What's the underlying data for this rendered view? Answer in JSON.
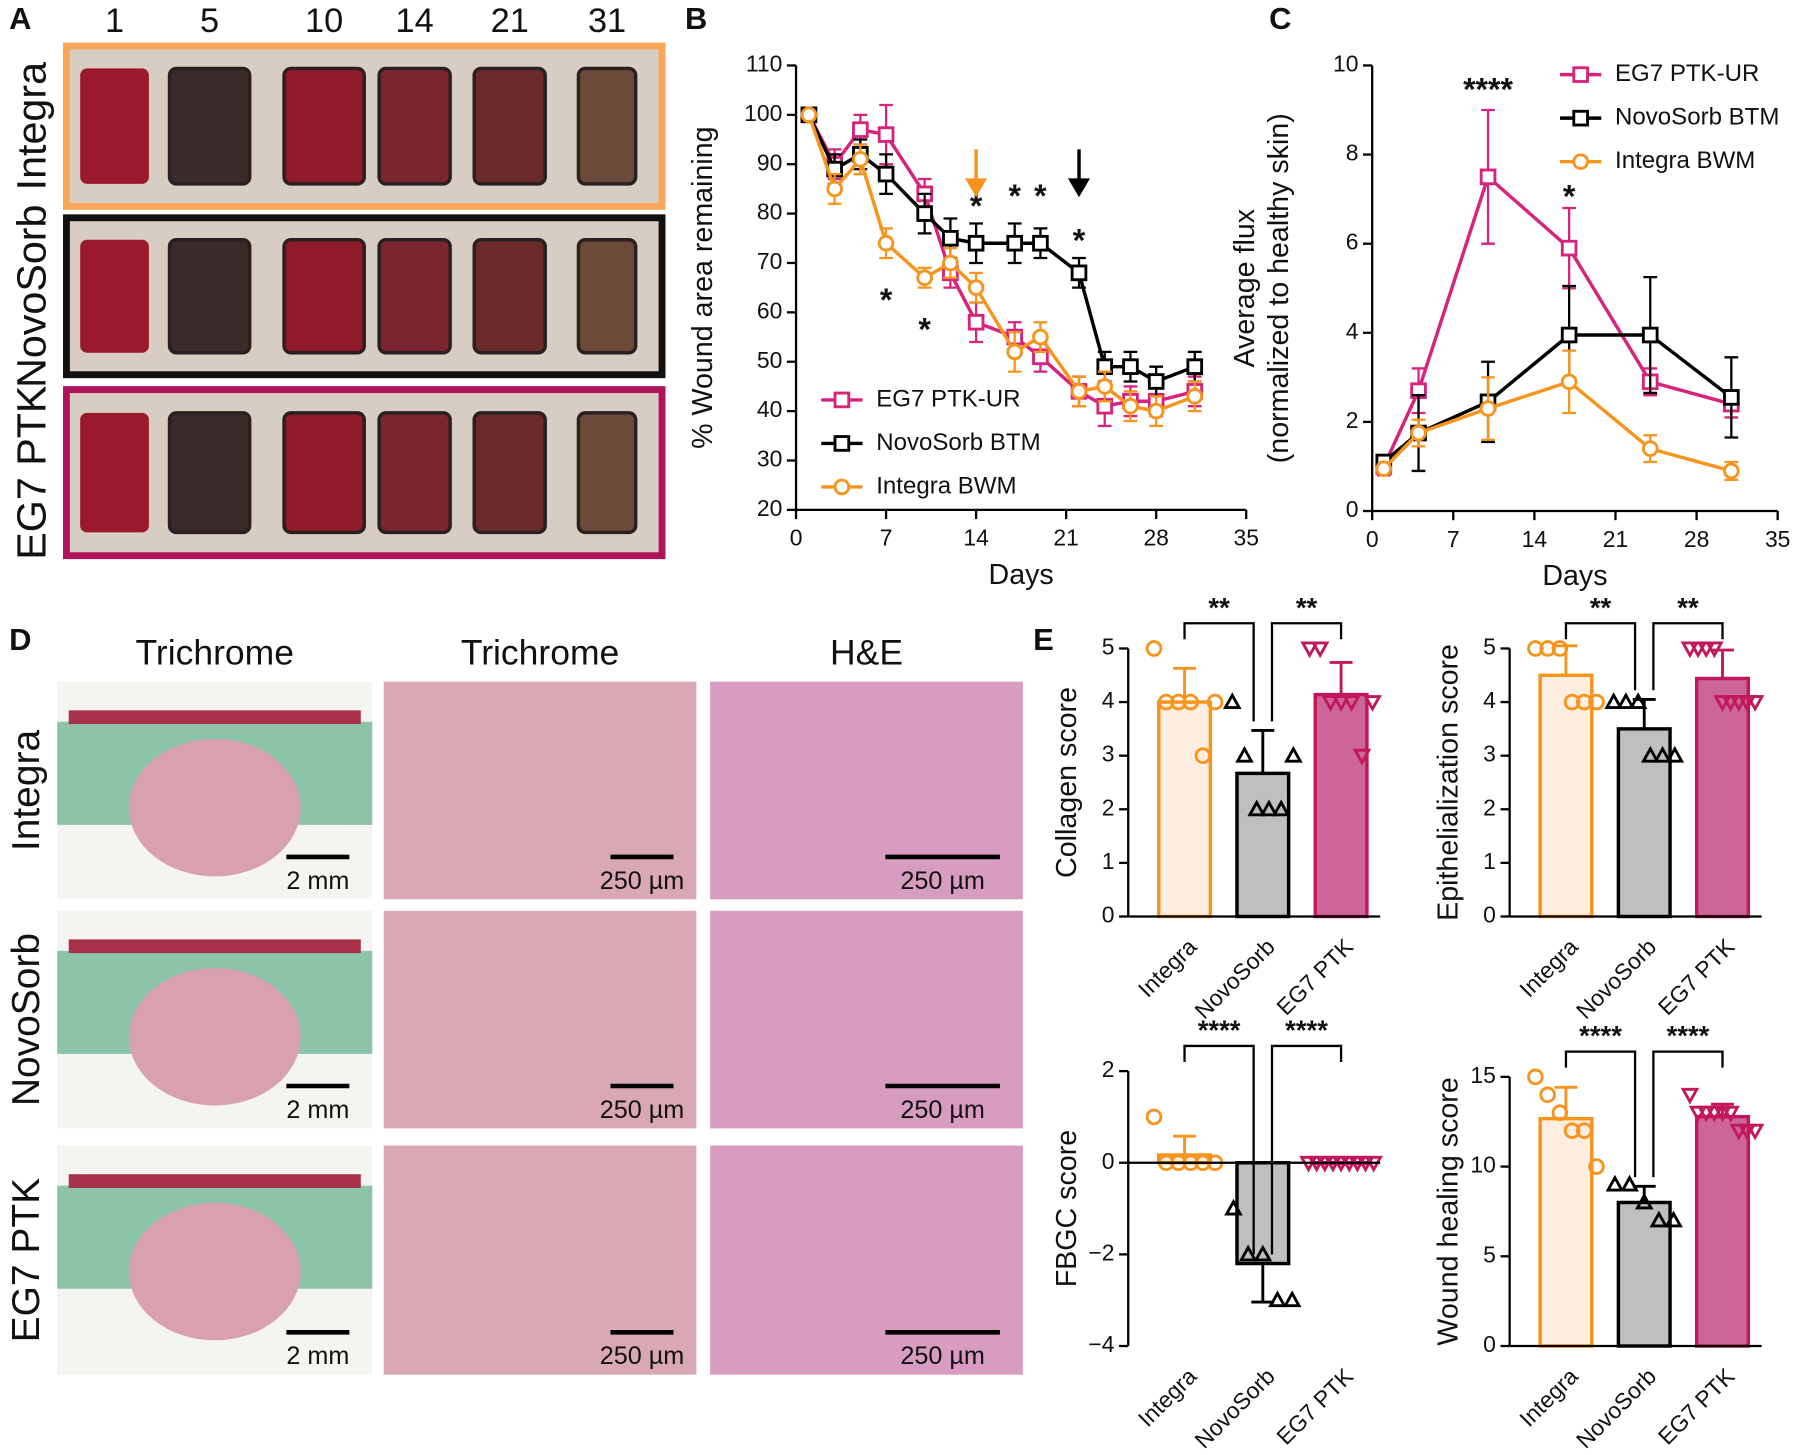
{
  "panel_labels": [
    "A",
    "B",
    "C",
    "D",
    "E"
  ],
  "panel_a": {
    "days": [
      "1",
      "5",
      "10",
      "14",
      "21",
      "31"
    ],
    "rows": [
      "Integra",
      "NovoSorb",
      "EG7 PTK"
    ],
    "colors": [
      "#f9a65a",
      "#111111",
      "#b0125b"
    ]
  },
  "panel_d": {
    "columns": [
      "Trichrome",
      "Trichrome",
      "H&E"
    ],
    "rows": [
      "Integra",
      "NovoSorb",
      "EG7 PTK"
    ],
    "scale_bars": [
      [
        "2 mm",
        "250 µm",
        "250 µm"
      ],
      [
        "2 mm",
        "250 µm",
        "250 µm"
      ],
      [
        "2 mm",
        "250 µm",
        "250 µm"
      ]
    ]
  },
  "chart_data": [
    {
      "type": "line",
      "xlabel": "Days",
      "ylabel": [
        "% Wound area remaining"
      ],
      "xlim": [
        0,
        35
      ],
      "xticks": [
        0,
        7,
        14,
        21,
        28,
        35
      ],
      "ylim": [
        20,
        110
      ],
      "yticks": [
        20,
        30,
        40,
        50,
        60,
        70,
        80,
        90,
        100,
        110
      ],
      "legend": "bottom-left",
      "series": [
        {
          "name": "EG7 PTK-UR",
          "color": "#d6247d",
          "marker": "square",
          "x": [
            1,
            3,
            5,
            7,
            10,
            12,
            14,
            17,
            19,
            22,
            24,
            26,
            28,
            31
          ],
          "values": [
            100,
            90,
            97,
            96,
            84,
            68,
            58,
            55,
            51,
            44,
            41,
            42,
            42,
            44
          ],
          "errors": [
            0.5,
            3,
            3,
            6,
            3,
            3,
            4,
            3,
            3,
            3,
            4,
            3,
            3,
            3
          ]
        },
        {
          "name": "NovoSorb BTM",
          "color": "#000000",
          "marker": "square",
          "x": [
            1,
            3,
            5,
            7,
            10,
            12,
            14,
            17,
            19,
            22,
            24,
            26,
            28,
            31
          ],
          "values": [
            100,
            89,
            92,
            88,
            80,
            75,
            74,
            74,
            74,
            68,
            49,
            49,
            46,
            49
          ],
          "errors": [
            0.5,
            3,
            3,
            4,
            4,
            4,
            4,
            4,
            3,
            3,
            3,
            3,
            3,
            3
          ]
        },
        {
          "name": "Integra BWM",
          "color": "#f7941d",
          "marker": "circle",
          "x": [
            1,
            3,
            5,
            7,
            10,
            12,
            14,
            17,
            19,
            22,
            24,
            26,
            28,
            31
          ],
          "values": [
            100,
            85,
            91,
            74,
            67,
            70,
            65,
            52,
            55,
            44,
            45,
            41,
            40,
            43
          ],
          "errors": [
            0.5,
            3,
            3,
            3,
            2,
            3,
            3,
            4,
            3,
            3,
            3,
            3,
            3,
            3
          ]
        }
      ],
      "annotations": [
        {
          "text": "*",
          "x": 7,
          "y": 62
        },
        {
          "text": "*",
          "x": 10,
          "y": 56
        },
        {
          "text": "*",
          "x": 14,
          "y": 81
        },
        {
          "text": "*",
          "x": 17,
          "y": 83
        },
        {
          "text": "*",
          "x": 19,
          "y": 83
        },
        {
          "text": "*",
          "x": 22,
          "y": 74
        }
      ],
      "arrows": [
        {
          "x": 14,
          "y": [
            93,
            84
          ],
          "color": "#f7941d"
        },
        {
          "x": 22,
          "y": [
            93,
            84
          ],
          "color": "#000000"
        }
      ]
    },
    {
      "type": "line",
      "xlabel": "Days",
      "ylabel": [
        "Average flux",
        "(normalized to healthy skin)"
      ],
      "xlim": [
        0,
        35
      ],
      "xticks": [
        0,
        7,
        14,
        21,
        28,
        35
      ],
      "ylim": [
        0,
        10
      ],
      "yticks": [
        0,
        2,
        4,
        6,
        8,
        10
      ],
      "legend": "top-right",
      "series": [
        {
          "name": "EG7 PTK-UR",
          "color": "#d6247d",
          "marker": "square",
          "x": [
            1,
            4,
            10,
            17,
            24,
            31
          ],
          "values": [
            1.0,
            2.7,
            7.5,
            5.9,
            2.9,
            2.4
          ],
          "errors": [
            0.2,
            0.5,
            1.5,
            0.9,
            0.3,
            0.3
          ]
        },
        {
          "name": "NovoSorb BTM",
          "color": "#000000",
          "marker": "square",
          "x": [
            1,
            4,
            10,
            17,
            24,
            31
          ],
          "values": [
            1.1,
            1.75,
            2.45,
            3.95,
            3.95,
            2.55
          ],
          "errors": [
            0.15,
            0.85,
            0.9,
            1.1,
            1.3,
            0.9
          ]
        },
        {
          "name": "Integra BWM",
          "color": "#f7941d",
          "marker": "circle",
          "x": [
            1,
            4,
            10,
            17,
            24,
            31
          ],
          "values": [
            0.95,
            1.75,
            2.3,
            2.9,
            1.4,
            0.9
          ],
          "errors": [
            0.1,
            0.3,
            0.7,
            0.7,
            0.3,
            0.2
          ]
        }
      ],
      "annotations": [
        {
          "text": "****",
          "x": 10,
          "y": 9.4
        },
        {
          "text": "*",
          "x": 17,
          "y": 7.0
        }
      ]
    },
    {
      "type": "bar",
      "ylabel": "Collagen score",
      "categories": [
        "Integra",
        "NovoSorb",
        "EG7 PTK"
      ],
      "values": [
        4.0,
        2.67,
        4.14
      ],
      "errors": [
        0.63,
        0.8,
        0.6
      ],
      "points": [
        [
          5,
          4,
          4,
          4,
          3,
          4
        ],
        [
          4,
          3,
          2,
          2,
          2,
          3
        ],
        [
          5,
          5,
          4,
          4,
          4,
          3,
          4
        ]
      ],
      "colors": [
        "#f7941d",
        "#000000",
        "#c2185b"
      ],
      "fills": [
        "#fdeee0",
        "#bfbfbf",
        "#cc6699"
      ],
      "markers": [
        "circle",
        "triangle-up",
        "triangle-down"
      ],
      "ylim": [
        0,
        5
      ],
      "yticks": [
        0,
        1,
        2,
        3,
        4,
        5
      ],
      "brackets": [
        {
          "from": 0,
          "to": 1,
          "label": "**"
        },
        {
          "from": 1,
          "to": 2,
          "label": "**"
        }
      ]
    },
    {
      "type": "bar",
      "ylabel": "Epithelialization score",
      "categories": [
        "Integra",
        "NovoSorb",
        "EG7 PTK"
      ],
      "values": [
        4.5,
        3.5,
        4.44
      ],
      "errors": [
        0.55,
        0.55,
        0.53
      ],
      "points": [
        [
          5,
          5,
          5,
          4,
          4,
          4
        ],
        [
          4,
          4,
          4,
          3,
          3,
          3
        ],
        [
          5,
          5,
          5,
          5,
          4,
          4,
          4,
          4,
          4
        ]
      ],
      "colors": [
        "#f7941d",
        "#000000",
        "#c2185b"
      ],
      "fills": [
        "#fdeee0",
        "#bfbfbf",
        "#cc6699"
      ],
      "markers": [
        "circle",
        "triangle-up",
        "triangle-down"
      ],
      "ylim": [
        0,
        5
      ],
      "yticks": [
        0,
        1,
        2,
        3,
        4,
        5
      ],
      "brackets": [
        {
          "from": 0,
          "to": 1,
          "label": "**"
        },
        {
          "from": 1,
          "to": 2,
          "label": "**"
        }
      ]
    },
    {
      "type": "bar",
      "ylabel": "FBGC score",
      "categories": [
        "Integra",
        "NovoSorb",
        "EG7 PTK"
      ],
      "values": [
        0.17,
        -2.2,
        0
      ],
      "errors": [
        0.41,
        0.84,
        0
      ],
      "points": [
        [
          1,
          0,
          0,
          0,
          0,
          0
        ],
        [
          -1,
          -2,
          -2,
          -3,
          -3
        ],
        [
          0,
          0,
          0,
          0,
          0,
          0,
          0,
          0,
          0
        ]
      ],
      "colors": [
        "#f7941d",
        "#000000",
        "#c2185b"
      ],
      "fills": [
        "#fdeee0",
        "#bfbfbf",
        "#cc6699"
      ],
      "markers": [
        "circle",
        "triangle-up",
        "triangle-down"
      ],
      "ylim": [
        -4,
        2
      ],
      "yticks": [
        {
          "value": -4,
          "label": "−4"
        },
        {
          "value": -2,
          "label": "−2"
        },
        0,
        2
      ],
      "brackets": [
        {
          "from": 0,
          "to": 1,
          "label": "****"
        },
        {
          "from": 1,
          "to": 2,
          "label": "****"
        }
      ]
    },
    {
      "type": "bar",
      "ylabel": "Wound healing score",
      "categories": [
        "Integra",
        "NovoSorb",
        "EG7 PTK"
      ],
      "values": [
        12.67,
        8.0,
        12.78
      ],
      "errors": [
        1.75,
        0.9,
        0.7
      ],
      "points": [
        [
          15,
          14,
          13,
          12,
          12,
          10
        ],
        [
          9,
          9,
          8,
          7,
          7
        ],
        [
          14,
          13,
          13,
          13,
          13,
          13,
          12,
          12,
          12
        ]
      ],
      "colors": [
        "#f7941d",
        "#000000",
        "#c2185b"
      ],
      "fills": [
        "#fdeee0",
        "#bfbfbf",
        "#cc6699"
      ],
      "markers": [
        "circle",
        "triangle-up",
        "triangle-down"
      ],
      "ylim": [
        0,
        15
      ],
      "yticks": [
        0,
        5,
        10,
        15
      ],
      "brackets": [
        {
          "from": 0,
          "to": 1,
          "label": "****"
        },
        {
          "from": 1,
          "to": 2,
          "label": "****"
        }
      ]
    }
  ]
}
